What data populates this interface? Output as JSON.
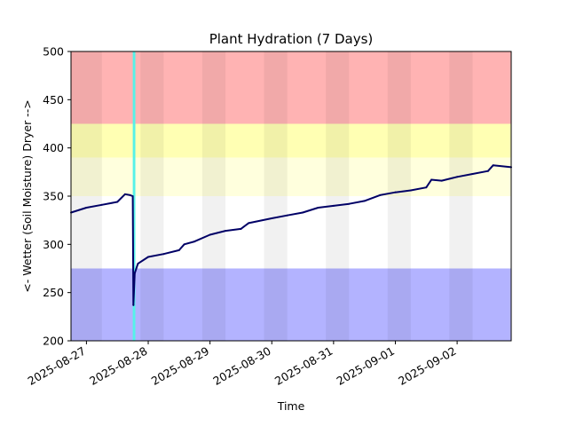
{
  "chart_data": {
    "type": "line",
    "title": "Plant Hydration (7 Days)",
    "xlabel": "Time",
    "ylabel": "<- Wetter (Soil Moisture) Dryer -->",
    "xlim": [
      "2025-08-26 18:00",
      "2025-09-02 21:00"
    ],
    "ylim": [
      200,
      500
    ],
    "x_ticks": [
      "2025-08-27",
      "2025-08-28",
      "2025-08-29",
      "2025-08-30",
      "2025-08-31",
      "2025-09-01",
      "2025-09-02"
    ],
    "y_ticks": [
      200,
      250,
      300,
      350,
      400,
      450,
      500
    ],
    "grid": false,
    "bands": [
      {
        "from": 425,
        "to": 500,
        "color": "#ffb3b3"
      },
      {
        "from": 390,
        "to": 425,
        "color": "#ffffb3"
      },
      {
        "from": 350,
        "to": 390,
        "color": "#ffffdd"
      },
      {
        "from": 275,
        "to": 350,
        "color": "#ffffff"
      },
      {
        "from": 200,
        "to": 275,
        "color": "#b3b3ff"
      }
    ],
    "night_shading": [
      {
        "from": "2025-08-26 18:00",
        "to": "2025-08-27 06:00"
      },
      {
        "from": "2025-08-27 21:00",
        "to": "2025-08-28 06:00"
      },
      {
        "from": "2025-08-28 21:00",
        "to": "2025-08-29 06:00"
      },
      {
        "from": "2025-08-29 21:00",
        "to": "2025-08-30 06:00"
      },
      {
        "from": "2025-08-30 21:00",
        "to": "2025-08-31 06:00"
      },
      {
        "from": "2025-08-31 21:00",
        "to": "2025-09-01 06:00"
      },
      {
        "from": "2025-09-01 21:00",
        "to": "2025-09-02 06:00"
      }
    ],
    "watering_events": [
      {
        "from": "2025-08-27 18:00",
        "to": "2025-08-27 19:00",
        "color": "#55f2e8"
      }
    ],
    "series": [
      {
        "color": "#000066",
        "points": [
          [
            "2025-08-26 18:00",
            333
          ],
          [
            "2025-08-27 00:00",
            338
          ],
          [
            "2025-08-27 06:00",
            341
          ],
          [
            "2025-08-27 12:00",
            344
          ],
          [
            "2025-08-27 15:00",
            352
          ],
          [
            "2025-08-27 17:00",
            351
          ],
          [
            "2025-08-27 18:00",
            350
          ],
          [
            "2025-08-27 18:15",
            237
          ],
          [
            "2025-08-27 18:45",
            270
          ],
          [
            "2025-08-27 20:00",
            280
          ],
          [
            "2025-08-28 00:00",
            287
          ],
          [
            "2025-08-28 06:00",
            290
          ],
          [
            "2025-08-28 12:00",
            294
          ],
          [
            "2025-08-28 14:00",
            300
          ],
          [
            "2025-08-28 18:00",
            303
          ],
          [
            "2025-08-29 00:00",
            310
          ],
          [
            "2025-08-29 06:00",
            314
          ],
          [
            "2025-08-29 12:00",
            316
          ],
          [
            "2025-08-29 15:00",
            322
          ],
          [
            "2025-08-30 00:00",
            327
          ],
          [
            "2025-08-30 06:00",
            330
          ],
          [
            "2025-08-30 12:00",
            333
          ],
          [
            "2025-08-30 18:00",
            338
          ],
          [
            "2025-08-31 00:00",
            340
          ],
          [
            "2025-08-31 06:00",
            342
          ],
          [
            "2025-08-31 12:00",
            345
          ],
          [
            "2025-08-31 18:00",
            351
          ],
          [
            "2025-09-01 00:00",
            354
          ],
          [
            "2025-09-01 06:00",
            356
          ],
          [
            "2025-09-01 12:00",
            359
          ],
          [
            "2025-09-01 14:00",
            367
          ],
          [
            "2025-09-01 18:00",
            366
          ],
          [
            "2025-09-02 00:00",
            370
          ],
          [
            "2025-09-02 06:00",
            373
          ],
          [
            "2025-09-02 12:00",
            376
          ],
          [
            "2025-09-02 14:00",
            382
          ],
          [
            "2025-09-02 21:00",
            380
          ]
        ]
      }
    ]
  }
}
